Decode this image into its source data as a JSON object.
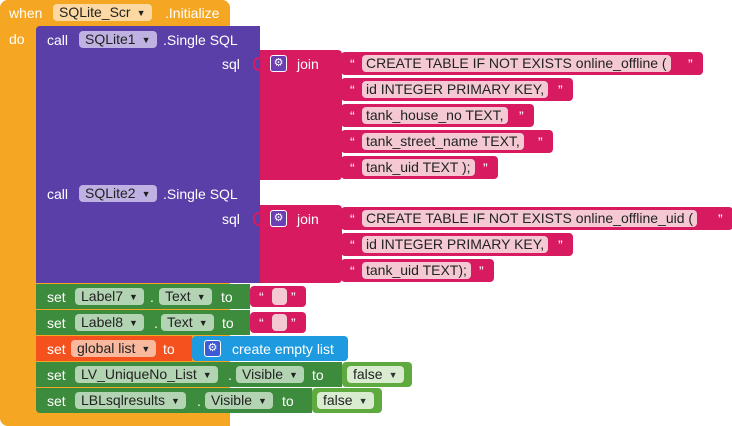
{
  "event": {
    "when_label": "when",
    "component": "SQLite_Scr",
    "event_name": ".Initialize",
    "do_label": "do"
  },
  "sql_call_1": {
    "call_label": "call",
    "component": "SQLite1",
    "method": ".Single SQL",
    "param": "sql",
    "join_label": "join",
    "strings": [
      "CREATE TABLE IF NOT EXISTS online_offline (",
      "id  INTEGER PRIMARY KEY,",
      "tank_house_no TEXT,",
      "tank_street_name TEXT,",
      "tank_uid TEXT );"
    ]
  },
  "sql_call_2": {
    "call_label": "call",
    "component": "SQLite2",
    "method": ".Single SQL",
    "param": "sql",
    "join_label": "join",
    "strings": [
      "CREATE TABLE IF NOT EXISTS online_offline_uid (",
      "id  INTEGER PRIMARY KEY,",
      "tank_uid TEXT);"
    ]
  },
  "set_label7": {
    "set_label": "set",
    "component": "Label7",
    "property": "Text",
    "to_label": "to"
  },
  "set_label8": {
    "set_label": "set",
    "component": "Label8",
    "property": "Text",
    "to_label": "to"
  },
  "set_global": {
    "set_label": "set",
    "variable": "global list",
    "to_label": "to",
    "value_label": "create empty list"
  },
  "set_lv": {
    "set_label": "set",
    "component": "LV_UniqueNo_List",
    "property": "Visible",
    "to_label": "to",
    "value": "false"
  },
  "set_lbl": {
    "set_label": "set",
    "component": "LBLsqlresults",
    "property": "Visible",
    "to_label": "to",
    "value": "false"
  },
  "quote_open": "“",
  "quote_close": "”",
  "dropdown_arrow": "▼",
  "gear_icon": "⚙",
  "colors": {
    "event": "#f5a623",
    "procedure": "#5b3fa8",
    "text": "#d81b60",
    "component_set": "#3d8b3d",
    "variable": "#f4511e",
    "list": "#1e9be0",
    "logic": "#5faa3f"
  }
}
